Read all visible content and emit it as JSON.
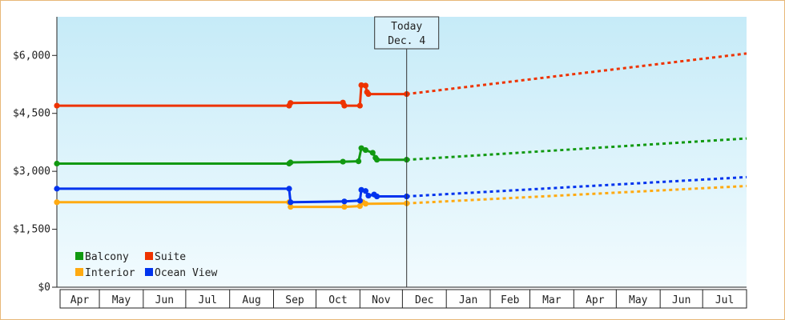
{
  "chart_data": {
    "type": "line",
    "y_ticks": [
      "$0",
      "$1,500",
      "$3,000",
      "$4,500",
      "$6,000"
    ],
    "y_tick_values": [
      0,
      1500,
      3000,
      4500,
      6000
    ],
    "ylim": [
      0,
      7000
    ],
    "x_months": [
      "Apr",
      "May",
      "Jun",
      "Jul",
      "Aug",
      "Sep",
      "Oct",
      "Nov",
      "Dec",
      "Jan",
      "Feb",
      "Mar",
      "Apr",
      "May",
      "Jun",
      "Jul"
    ],
    "x_month_starts": [
      0,
      30,
      61,
      91,
      122,
      153,
      183,
      214,
      244,
      275,
      306,
      334,
      365,
      395,
      426,
      456
    ],
    "x_end": 487,
    "today": {
      "line1": "Today",
      "line2": "Dec. 4",
      "day": 247
    },
    "grid": true,
    "legend_position": "bottom-left",
    "series": [
      {
        "name": "Balcony",
        "color": "#119911",
        "history": [
          [
            0,
            3200
          ],
          [
            164,
            3200
          ],
          [
            165,
            3230
          ],
          [
            202,
            3250
          ],
          [
            213,
            3260
          ],
          [
            215,
            3600
          ],
          [
            218,
            3550
          ],
          [
            223,
            3480
          ],
          [
            225,
            3350
          ],
          [
            226,
            3300
          ],
          [
            247,
            3300
          ]
        ],
        "forecast": [
          [
            247,
            3300
          ],
          [
            487,
            3850
          ]
        ]
      },
      {
        "name": "Suite",
        "color": "#ee3300",
        "history": [
          [
            0,
            4700
          ],
          [
            164,
            4700
          ],
          [
            165,
            4770
          ],
          [
            202,
            4780
          ],
          [
            203,
            4700
          ],
          [
            214,
            4700
          ],
          [
            215,
            5230
          ],
          [
            218,
            5220
          ],
          [
            219,
            5050
          ],
          [
            220,
            5000
          ],
          [
            247,
            5000
          ]
        ],
        "forecast": [
          [
            247,
            5000
          ],
          [
            487,
            6050
          ]
        ]
      },
      {
        "name": "Interior",
        "color": "#ffaa11",
        "history": [
          [
            0,
            2200
          ],
          [
            164,
            2200
          ],
          [
            165,
            2080
          ],
          [
            203,
            2080
          ],
          [
            214,
            2100
          ],
          [
            216,
            2200
          ],
          [
            218,
            2160
          ],
          [
            247,
            2170
          ]
        ],
        "forecast": [
          [
            247,
            2170
          ],
          [
            487,
            2620
          ]
        ]
      },
      {
        "name": "Ocean View",
        "color": "#0033ee",
        "history": [
          [
            0,
            2550
          ],
          [
            164,
            2550
          ],
          [
            165,
            2200
          ],
          [
            203,
            2220
          ],
          [
            214,
            2240
          ],
          [
            215,
            2520
          ],
          [
            218,
            2490
          ],
          [
            220,
            2370
          ],
          [
            224,
            2400
          ],
          [
            226,
            2350
          ],
          [
            247,
            2350
          ]
        ],
        "forecast": [
          [
            247,
            2350
          ],
          [
            487,
            2850
          ]
        ]
      }
    ]
  }
}
